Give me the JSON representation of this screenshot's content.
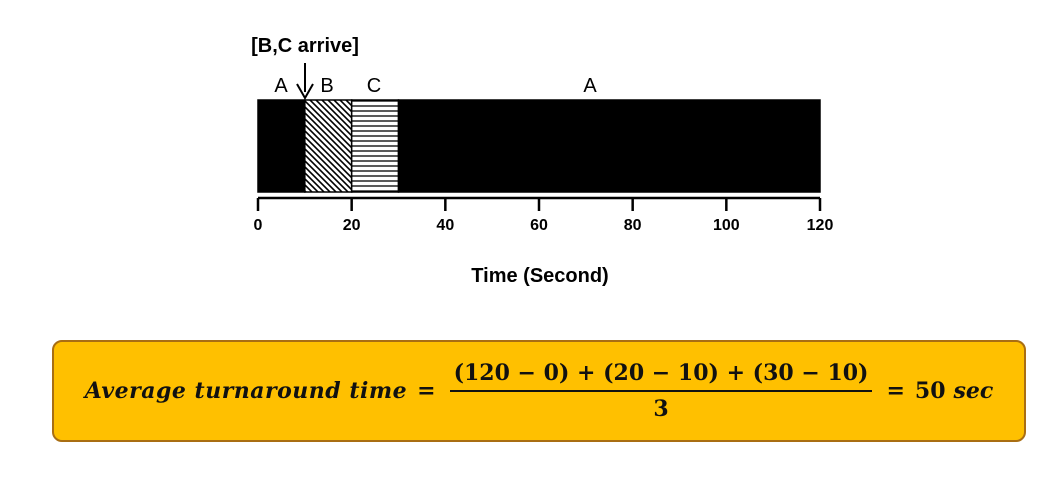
{
  "arrival_annotation": "[B,C arrive]",
  "segments": [
    {
      "label": "A",
      "start": 0,
      "end": 10,
      "pattern": "solid"
    },
    {
      "label": "B",
      "start": 10,
      "end": 20,
      "pattern": "diagonal"
    },
    {
      "label": "C",
      "start": 20,
      "end": 30,
      "pattern": "horizontal"
    },
    {
      "label": "A",
      "start": 30,
      "end": 120,
      "pattern": "solid"
    }
  ],
  "segment_labels": [
    "A",
    "B",
    "C",
    "A"
  ],
  "arrival_time": 10,
  "axis": {
    "min": 0,
    "max": 120,
    "ticks": [
      0,
      20,
      40,
      60,
      80,
      100,
      120
    ],
    "tick_labels": [
      "0",
      "20",
      "40",
      "60",
      "80",
      "100",
      "120"
    ],
    "label": "Time (Second)"
  },
  "formula": {
    "lhs": "Average turnaround time",
    "equals": "=",
    "numerator": "(120 − 0) + (20 − 10) + (30 − 10)",
    "denominator": "3",
    "rhs_equals": "=",
    "result_value": "50",
    "result_unit": "sec"
  },
  "colors": {
    "bar_fill": "#000000",
    "box_fill": "#ffc000",
    "box_border": "#a96e13"
  }
}
